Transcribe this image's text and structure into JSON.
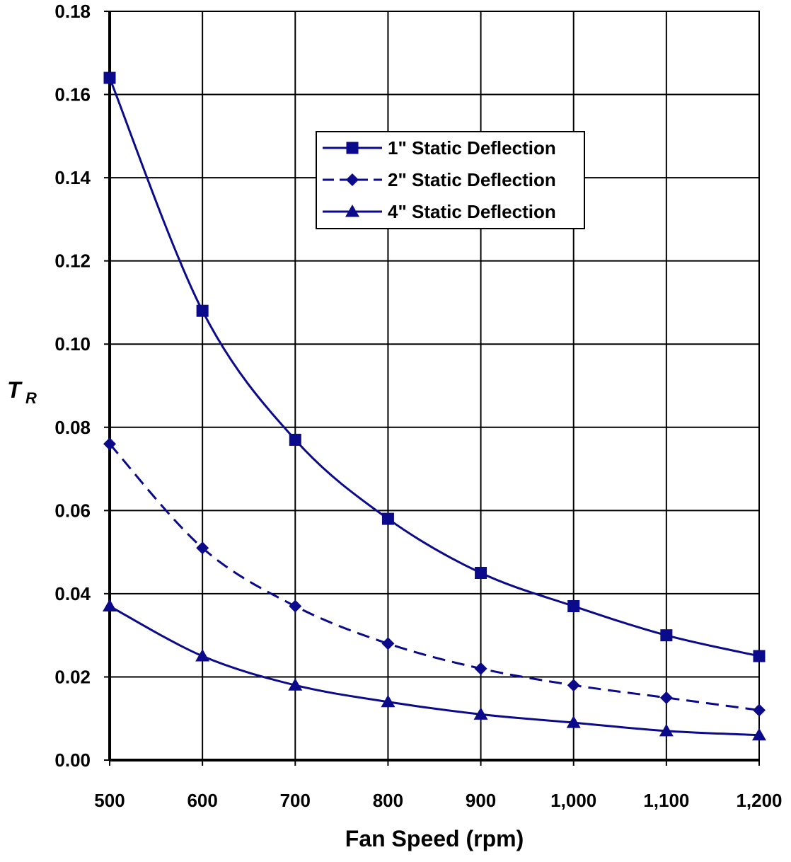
{
  "colors": {
    "series": "#0a0a8a",
    "grid": "#000000",
    "background": "#ffffff"
  },
  "chart_data": {
    "type": "line",
    "xlabel": "Fan Speed (rpm)",
    "ylabel": "T",
    "ylabel_subscript": "R",
    "x": [
      500,
      600,
      700,
      800,
      900,
      1000,
      1100,
      1200
    ],
    "xtick_labels": [
      "500",
      "600",
      "700",
      "800",
      "900",
      "1,000",
      "1,100",
      "1,200"
    ],
    "ytick_labels": [
      "0.00",
      "0.02",
      "0.04",
      "0.06",
      "0.08",
      "0.10",
      "0.12",
      "0.14",
      "0.16",
      "0.18"
    ],
    "xlim": [
      500,
      1200
    ],
    "ylim": [
      0,
      0.18
    ],
    "grid": true,
    "legend_position": "upper-center",
    "series": [
      {
        "name": "1\" Static Deflection",
        "marker": "square",
        "line_style": "solid",
        "values": [
          0.164,
          0.108,
          0.077,
          0.058,
          0.045,
          0.037,
          0.03,
          0.025
        ]
      },
      {
        "name": "2\" Static Deflection",
        "marker": "diamond",
        "line_style": "dashed",
        "values": [
          0.076,
          0.051,
          0.037,
          0.028,
          0.022,
          0.018,
          0.015,
          0.012
        ]
      },
      {
        "name": "4\" Static Deflection",
        "marker": "triangle",
        "line_style": "solid",
        "values": [
          0.037,
          0.025,
          0.018,
          0.014,
          0.011,
          0.009,
          0.007,
          0.006
        ]
      }
    ]
  }
}
